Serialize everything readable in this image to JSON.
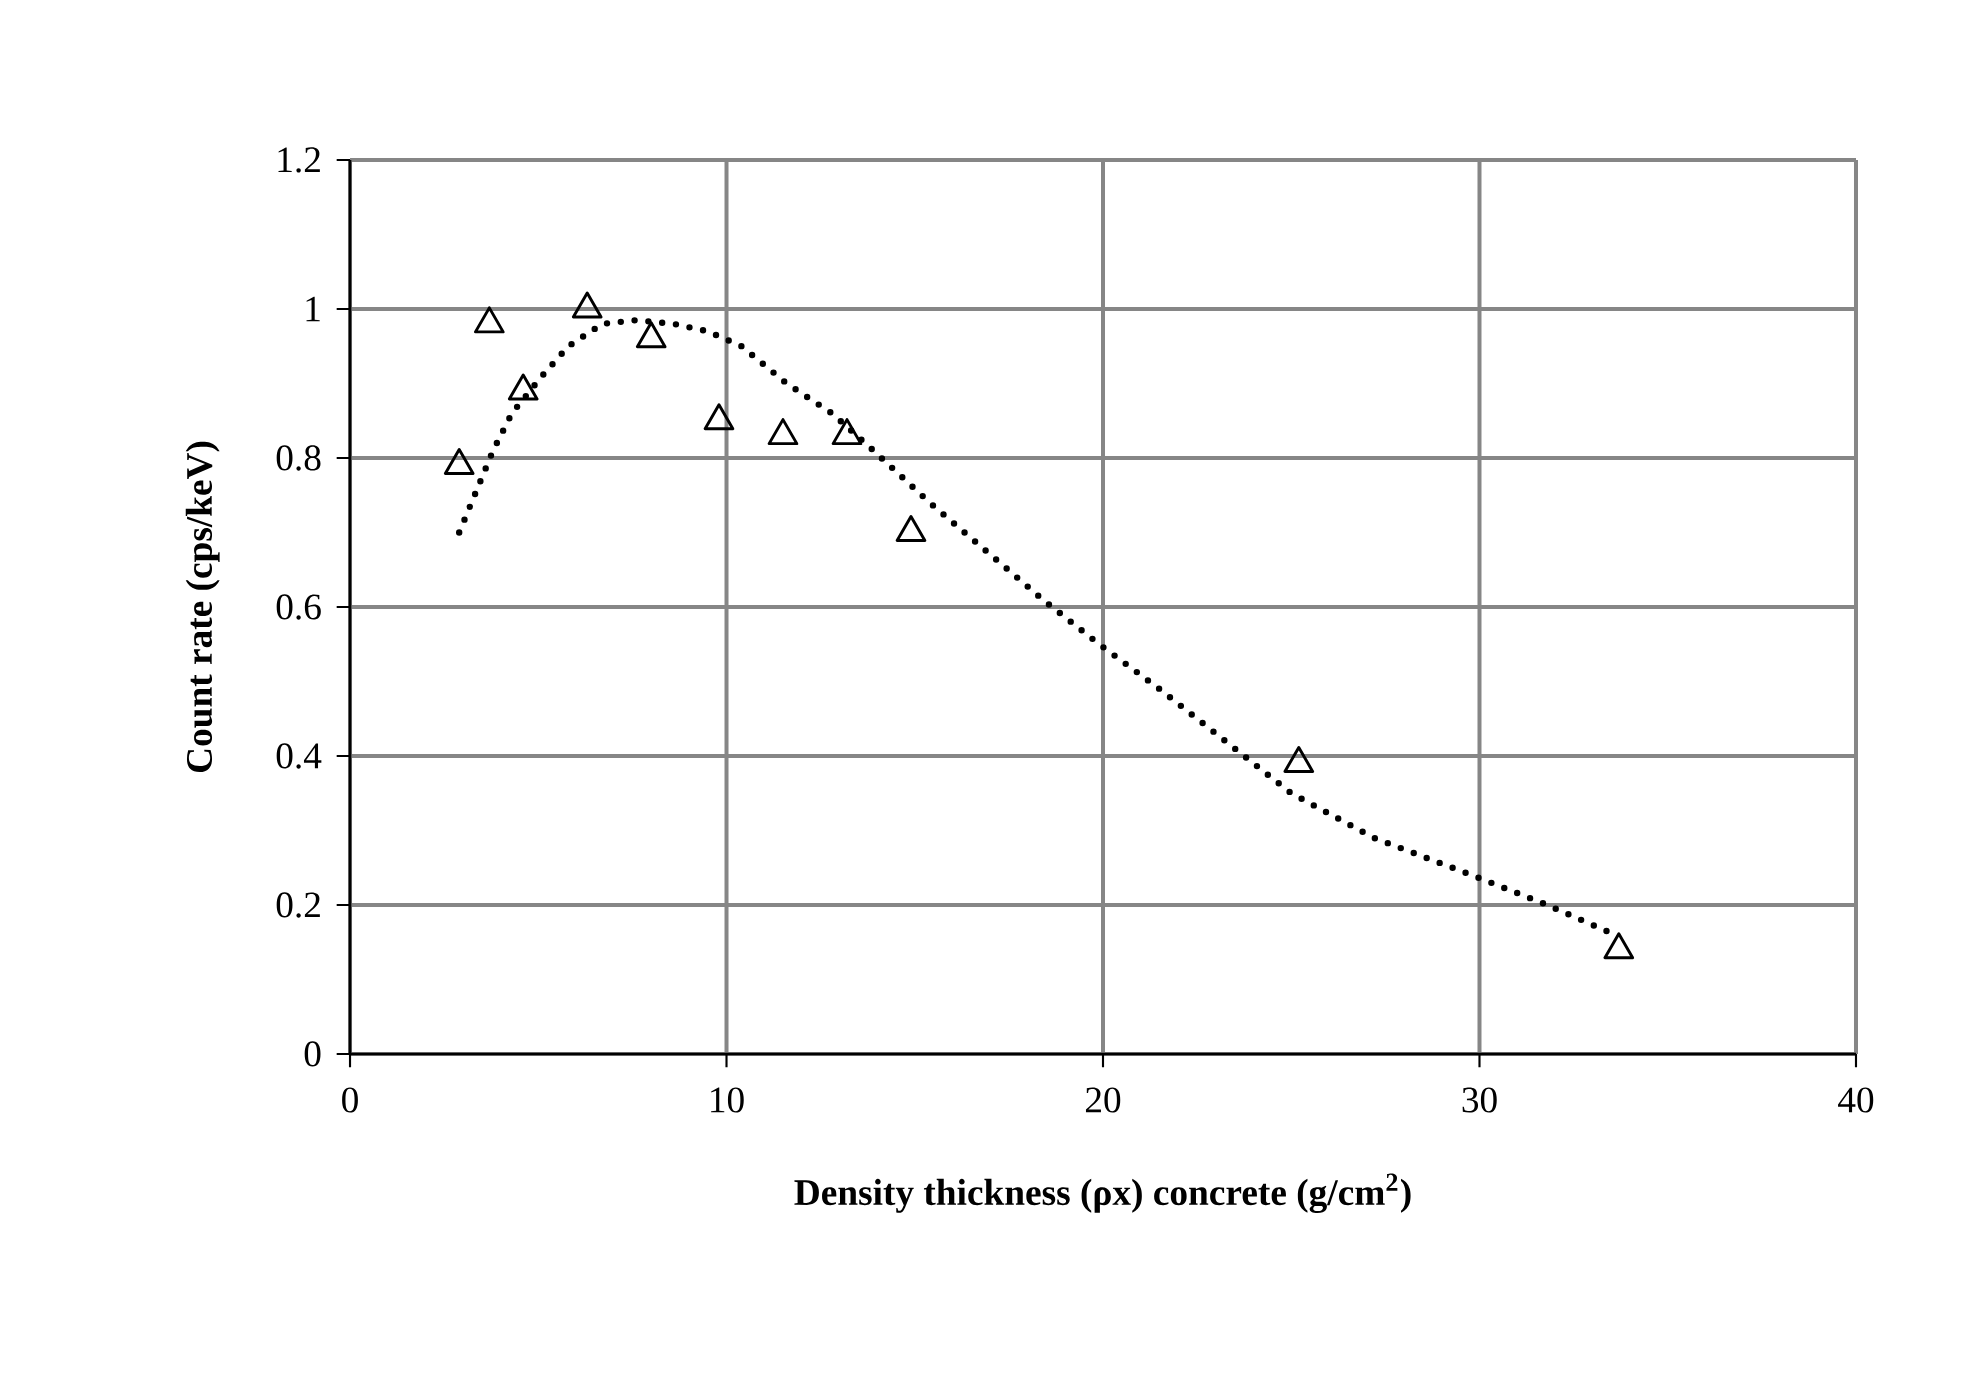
{
  "chart_data": {
    "type": "scatter",
    "xlabel": "Density thickness (ρx) concrete (g/cm$^{2}$)",
    "ylabel": "Count rate (cps/keV)",
    "xlim": [
      0,
      40
    ],
    "xticks": [
      0,
      10,
      20,
      30,
      40
    ],
    "ylim": [
      0,
      1.2
    ],
    "yticks": [
      0,
      0.2,
      0.4,
      0.6,
      0.8,
      1,
      1.2
    ],
    "grid": true,
    "series": [
      {
        "color": "#000000",
        "marker": "triangle",
        "x": [
          2.9,
          3.7,
          4.6,
          6.3,
          8.0,
          9.8,
          11.5,
          13.2,
          14.9,
          25.2,
          33.7
        ],
        "values": [
          0.79,
          0.98,
          0.89,
          1.0,
          0.96,
          0.85,
          0.83,
          0.83,
          0.7,
          0.39,
          0.14
        ]
      },
      {
        "type": "line",
        "color": "#000000",
        "marker": "none",
        "line_style": "dotted",
        "x": [
          2.9,
          3.8,
          4.3,
          5.1,
          5.8,
          6.7,
          7.6,
          8.6,
          9.5,
          10.4,
          11.6,
          12.8,
          13.9,
          15.4,
          18.4,
          19.9,
          21.5,
          23.5,
          25.0,
          27.2,
          29.8,
          31.8,
          33.6
        ],
        "values": [
          0.7,
          0.81,
          0.86,
          0.91,
          0.95,
          0.98,
          0.985,
          0.98,
          0.97,
          0.95,
          0.9,
          0.86,
          0.81,
          0.74,
          0.61,
          0.55,
          0.49,
          0.41,
          0.35,
          0.29,
          0.24,
          0.2,
          0.16
        ]
      }
    ]
  }
}
